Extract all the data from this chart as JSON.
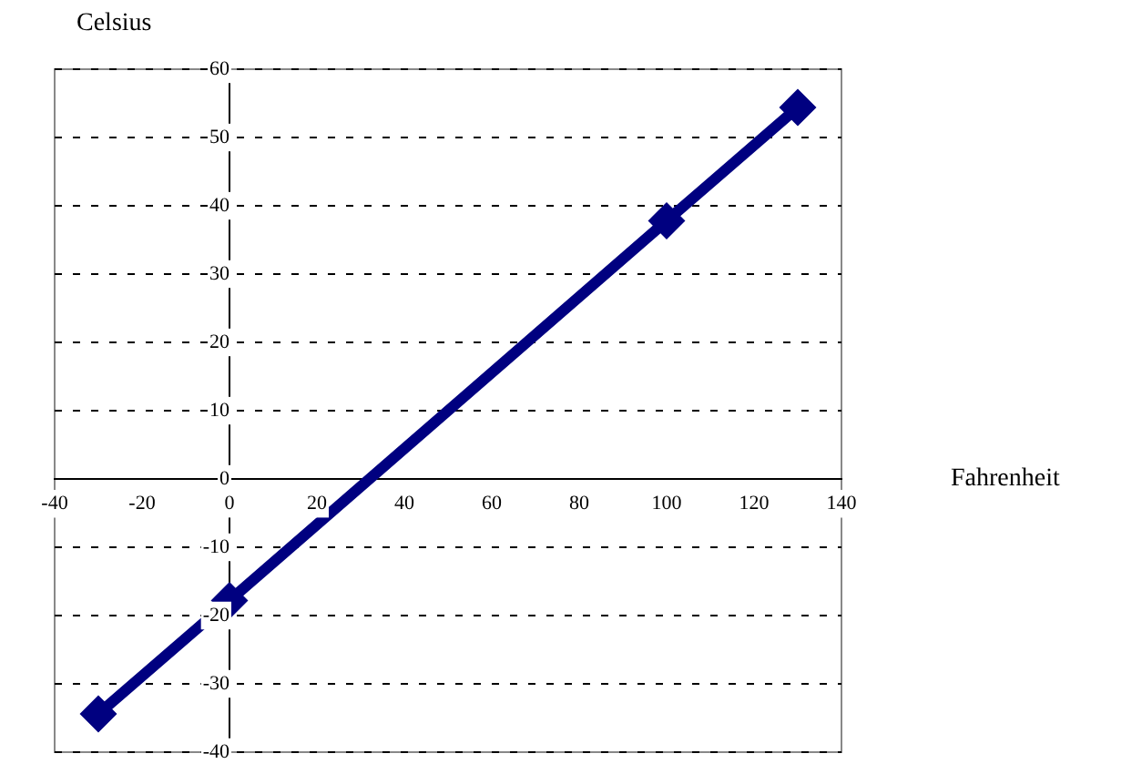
{
  "chart_data": {
    "type": "line",
    "xlabel": "Fahrenheit",
    "ylabel": "Celsius",
    "series": [
      {
        "color": "#000080",
        "x": [
          -30,
          0,
          100,
          130
        ],
        "values": [
          -34.4,
          -17.8,
          37.8,
          54.4
        ]
      }
    ],
    "xlim": [
      -40,
      140
    ],
    "xticks": [
      -40,
      -20,
      0,
      20,
      40,
      60,
      80,
      100,
      120,
      140
    ],
    "ylim": [
      -40,
      60
    ],
    "yticks": [
      -40,
      -30,
      -20,
      -10,
      0,
      10,
      20,
      30,
      40,
      50,
      60
    ],
    "grid": "y",
    "legend": false,
    "marker": "diamond",
    "line_style": "solid"
  }
}
